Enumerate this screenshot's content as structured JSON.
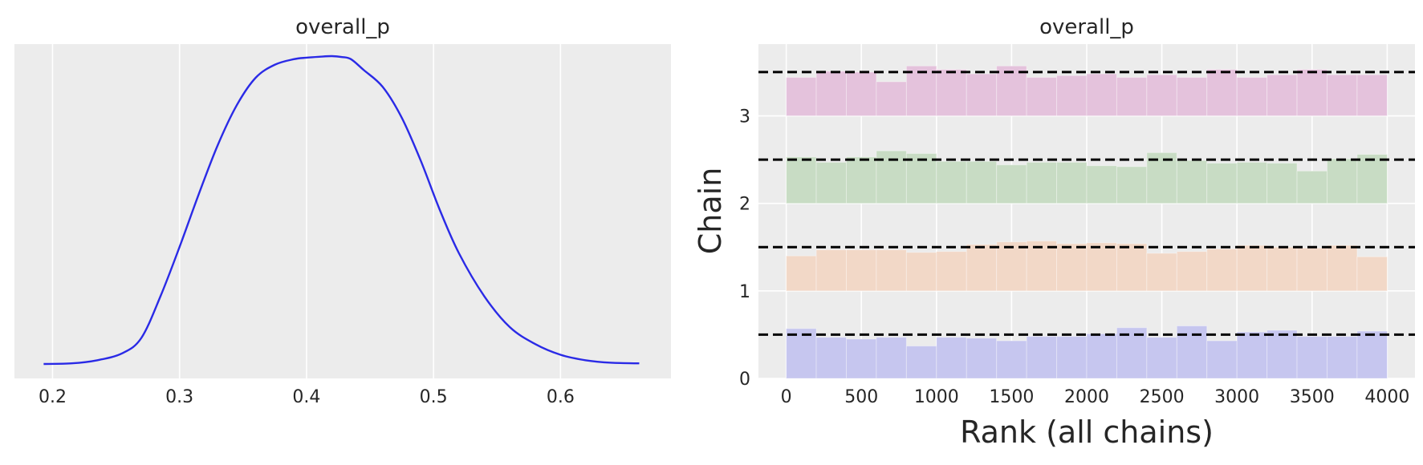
{
  "colors": {
    "background": "#ececec",
    "grid": "#ffffff",
    "kde_line": "#2a2ae6",
    "chain_colors": [
      "#c6c6ef",
      "#f2d8c7",
      "#c8dcc4",
      "#e4c2dc"
    ],
    "reference_line": "#000000"
  },
  "chart_data": [
    {
      "type": "line",
      "title": "overall_p",
      "xlabel": "",
      "ylabel": "",
      "xlim": [
        0.17,
        0.687
      ],
      "xticks": [
        0.2,
        0.3,
        0.4,
        0.5,
        0.6
      ],
      "xtick_labels": [
        "0.2",
        "0.3",
        "0.4",
        "0.5",
        "0.6"
      ],
      "yticks_visible": false,
      "grid": "vertical",
      "series": [
        {
          "x": [
            0.193,
            0.215,
            0.235,
            0.255,
            0.27,
            0.285,
            0.3,
            0.315,
            0.33,
            0.345,
            0.36,
            0.375,
            0.39,
            0.4,
            0.41,
            0.42,
            0.428,
            0.435,
            0.445,
            0.46,
            0.475,
            0.49,
            0.505,
            0.52,
            0.54,
            0.56,
            0.58,
            0.6,
            0.62,
            0.64,
            0.662
          ],
          "y": [
            0.0,
            0.002,
            0.012,
            0.035,
            0.085,
            0.22,
            0.38,
            0.55,
            0.71,
            0.84,
            0.93,
            0.972,
            0.99,
            0.995,
            0.998,
            1.0,
            0.997,
            0.99,
            0.955,
            0.9,
            0.8,
            0.66,
            0.5,
            0.36,
            0.22,
            0.12,
            0.065,
            0.03,
            0.012,
            0.004,
            0.002
          ]
        }
      ]
    },
    {
      "type": "bar",
      "title": "overall_p",
      "xlabel": "Rank (all chains)",
      "ylabel": "Chain",
      "xlim": [
        -185,
        4185
      ],
      "ylim": [
        0,
        3.82
      ],
      "xticks": [
        0,
        500,
        1000,
        1500,
        2000,
        2500,
        3000,
        3500,
        4000
      ],
      "xtick_labels": [
        "0",
        "500",
        "1000",
        "1500",
        "2000",
        "2500",
        "3000",
        "3500",
        "4000"
      ],
      "yticks": [
        0,
        1,
        2,
        3
      ],
      "ytick_labels": [
        "0",
        "1",
        "2",
        "3"
      ],
      "grid": "both",
      "bin_edges": [
        0,
        200,
        400,
        600,
        800,
        1000,
        1200,
        1400,
        1600,
        1800,
        2000,
        2200,
        2400,
        2600,
        2800,
        3000,
        3200,
        3400,
        3600,
        3800,
        4000
      ],
      "reference_lines": [
        0.5,
        1.5,
        2.5,
        3.5
      ],
      "series": [
        {
          "chain": 0,
          "values": [
            0.57,
            0.47,
            0.45,
            0.47,
            0.37,
            0.47,
            0.46,
            0.43,
            0.48,
            0.48,
            0.51,
            0.58,
            0.47,
            0.6,
            0.43,
            0.53,
            0.55,
            0.48,
            0.48,
            0.54
          ]
        },
        {
          "chain": 1,
          "values": [
            0.4,
            0.47,
            0.47,
            0.47,
            0.44,
            0.45,
            0.53,
            0.56,
            0.57,
            0.54,
            0.55,
            0.54,
            0.43,
            0.45,
            0.48,
            0.52,
            0.5,
            0.49,
            0.52,
            0.39
          ]
        },
        {
          "chain": 2,
          "values": [
            0.53,
            0.47,
            0.53,
            0.6,
            0.57,
            0.48,
            0.48,
            0.44,
            0.47,
            0.47,
            0.43,
            0.42,
            0.58,
            0.49,
            0.46,
            0.47,
            0.46,
            0.37,
            0.51,
            0.56
          ]
        },
        {
          "chain": 3,
          "values": [
            0.44,
            0.51,
            0.5,
            0.39,
            0.57,
            0.53,
            0.48,
            0.57,
            0.44,
            0.46,
            0.48,
            0.44,
            0.47,
            0.44,
            0.53,
            0.44,
            0.47,
            0.53,
            0.47,
            0.47
          ]
        }
      ]
    }
  ]
}
